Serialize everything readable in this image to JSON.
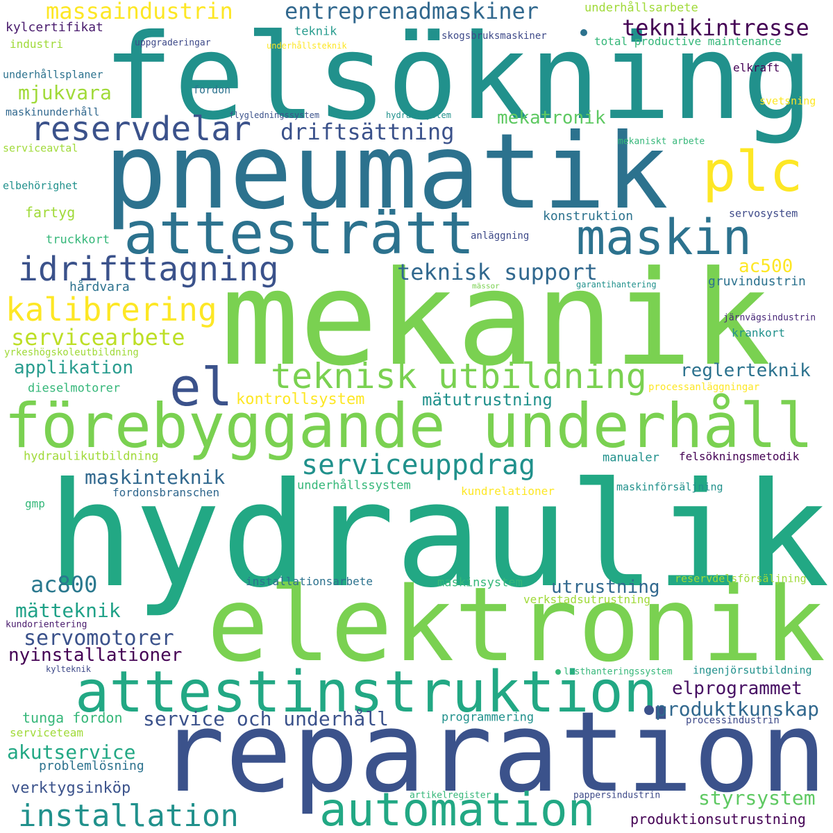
{
  "words": [
    {
      "text": "felsökning",
      "color": "#21918c"
    },
    {
      "text": "pneumatik",
      "color": "#2c728e"
    },
    {
      "text": "mekanik",
      "color": "#7ad151"
    },
    {
      "text": "hydraulik",
      "color": "#22a884"
    },
    {
      "text": "elektronik",
      "color": "#7ad151"
    },
    {
      "text": "reparation",
      "color": "#3b528b"
    },
    {
      "text": "förebyggande underhåll",
      "color": "#7ad151"
    },
    {
      "text": "attestinstruktion",
      "color": "#22a884"
    },
    {
      "text": "automation",
      "color": "#22a884"
    },
    {
      "text": "attesträtt",
      "color": "#2c728e"
    },
    {
      "text": "plc",
      "color": "#fde725"
    },
    {
      "text": "maskin",
      "color": "#2c728e"
    },
    {
      "text": "el",
      "color": "#3b528b"
    },
    {
      "text": "reservdelar",
      "color": "#3b528b"
    },
    {
      "text": "idrifttagning",
      "color": "#3b528b"
    },
    {
      "text": "teknisk utbildning",
      "color": "#7ad151"
    },
    {
      "text": "kalibrering",
      "color": "#fde725"
    },
    {
      "text": "installation",
      "color": "#21918c"
    },
    {
      "text": "serviceuppdrag",
      "color": "#21918c"
    },
    {
      "text": "massaindustrin",
      "color": "#fde725"
    },
    {
      "text": "entreprenadmaskiner",
      "color": "#31688e"
    },
    {
      "text": "teknikintresse",
      "color": "#440154"
    },
    {
      "text": "driftsättning",
      "color": "#3b528b"
    },
    {
      "text": "teknisk support",
      "color": "#31688e"
    },
    {
      "text": "servicearbete",
      "color": "#bddf26"
    },
    {
      "text": "mekatronik",
      "color": "#5ec962"
    },
    {
      "text": "mjukvara",
      "color": "#a0da39"
    },
    {
      "text": "ac800",
      "color": "#2a788e"
    },
    {
      "text": "ac500",
      "color": "#fde725"
    },
    {
      "text": "applikation",
      "color": "#2a9d8f"
    },
    {
      "text": "reglerteknik",
      "color": "#2c728e"
    },
    {
      "text": "maskinteknik",
      "color": "#31688e"
    },
    {
      "text": "mätteknik",
      "color": "#1fa187"
    },
    {
      "text": "servomotorer",
      "color": "#3b528b"
    },
    {
      "text": "nyinstallationer",
      "color": "#440154"
    },
    {
      "text": "service och underhåll",
      "color": "#3b528b"
    },
    {
      "text": "produktkunskap",
      "color": "#31688e"
    },
    {
      "text": "elprogrammet",
      "color": "#471063"
    },
    {
      "text": "akutservice",
      "color": "#22a884"
    },
    {
      "text": "styrsystem",
      "color": "#5ec962"
    },
    {
      "text": "utrustning",
      "color": "#31688e"
    },
    {
      "text": "kontrollsystem",
      "color": "#fde725"
    },
    {
      "text": "mätutrustning",
      "color": "#21918c"
    },
    {
      "text": "verktygsinköp",
      "color": "#3b528b"
    },
    {
      "text": "produktionsutrustning",
      "color": "#440154"
    },
    {
      "text": "underhållsarbete",
      "color": "#a0da39"
    },
    {
      "text": "kylcertifikat",
      "color": "#481a6c"
    },
    {
      "text": "teknik",
      "color": "#2a9d8f"
    },
    {
      "text": "industri",
      "color": "#a0da39"
    },
    {
      "text": "uppgraderingar",
      "color": "#3e4a89"
    },
    {
      "text": "underhållsteknik",
      "color": "#fde725"
    },
    {
      "text": "skogsbruksmaskiner",
      "color": "#3e4a89"
    },
    {
      "text": "total productive maintenance",
      "color": "#35b779"
    },
    {
      "text": "underhållsplaner",
      "color": "#2c728e"
    },
    {
      "text": "elkraft",
      "color": "#440154"
    },
    {
      "text": "fordon",
      "color": "#2c728e"
    },
    {
      "text": "maskinunderhåll",
      "color": "#31688e"
    },
    {
      "text": "flygledningssystem",
      "color": "#3b528b"
    },
    {
      "text": "hydraulsystem",
      "color": "#21918c"
    },
    {
      "text": "svetsning",
      "color": "#fde725"
    },
    {
      "text": "serviceavtal",
      "color": "#a0da39"
    },
    {
      "text": "mekaniskt arbete",
      "color": "#35b779"
    },
    {
      "text": "elbehörighet",
      "color": "#21918c"
    },
    {
      "text": "fartyg",
      "color": "#a0da39"
    },
    {
      "text": "konstruktion",
      "color": "#2c728e"
    },
    {
      "text": "servosystem",
      "color": "#3e4a89"
    },
    {
      "text": "truckkort",
      "color": "#35b779"
    },
    {
      "text": "anläggning",
      "color": "#3e4a89"
    },
    {
      "text": "hårdvara",
      "color": "#2c728e"
    },
    {
      "text": "mässor",
      "color": "#7ad151"
    },
    {
      "text": "garantihantering",
      "color": "#21918c"
    },
    {
      "text": "gruvindustrin",
      "color": "#2c728e"
    },
    {
      "text": "järnvägsindustrin",
      "color": "#482878"
    },
    {
      "text": "krankort",
      "color": "#21918c"
    },
    {
      "text": "yrkeshögskoleutbildning",
      "color": "#a0da39"
    },
    {
      "text": "dieselmotorer",
      "color": "#35b779"
    },
    {
      "text": "processanläggningar",
      "color": "#fde725"
    },
    {
      "text": "hydraulikutbildning",
      "color": "#a0da39"
    },
    {
      "text": "manualer",
      "color": "#21918c"
    },
    {
      "text": "felsökningsmetodik",
      "color": "#440154"
    },
    {
      "text": "underhållssystem",
      "color": "#35b779"
    },
    {
      "text": "fordonsbranschen",
      "color": "#31688e"
    },
    {
      "text": "kundrelationer",
      "color": "#fde725"
    },
    {
      "text": "maskinförsäljning",
      "color": "#21918c"
    },
    {
      "text": "gmp",
      "color": "#35b779"
    },
    {
      "text": "installationsarbete",
      "color": "#2c728e"
    },
    {
      "text": "maskinsystem",
      "color": "#35b779"
    },
    {
      "text": "reservdelsförsäljning",
      "color": "#a0da39"
    },
    {
      "text": "verkstadsutrustning",
      "color": "#a0da39"
    },
    {
      "text": "kundorientering",
      "color": "#481a6c"
    },
    {
      "text": "kylteknik",
      "color": "#3e4a89"
    },
    {
      "text": "lasthanteringssystem",
      "color": "#35b779"
    },
    {
      "text": "ingenjörsutbildning",
      "color": "#21918c"
    },
    {
      "text": "tunga fordon",
      "color": "#35b779"
    },
    {
      "text": "programmering",
      "color": "#21918c"
    },
    {
      "text": "serviceteam",
      "color": "#a0da39"
    },
    {
      "text": "processindustrin",
      "color": "#3e4a89"
    },
    {
      "text": "problemlösning",
      "color": "#2c728e"
    },
    {
      "text": "artikelregister",
      "color": "#35b779"
    },
    {
      "text": "pappersindustrin",
      "color": "#3e4a89"
    }
  ]
}
